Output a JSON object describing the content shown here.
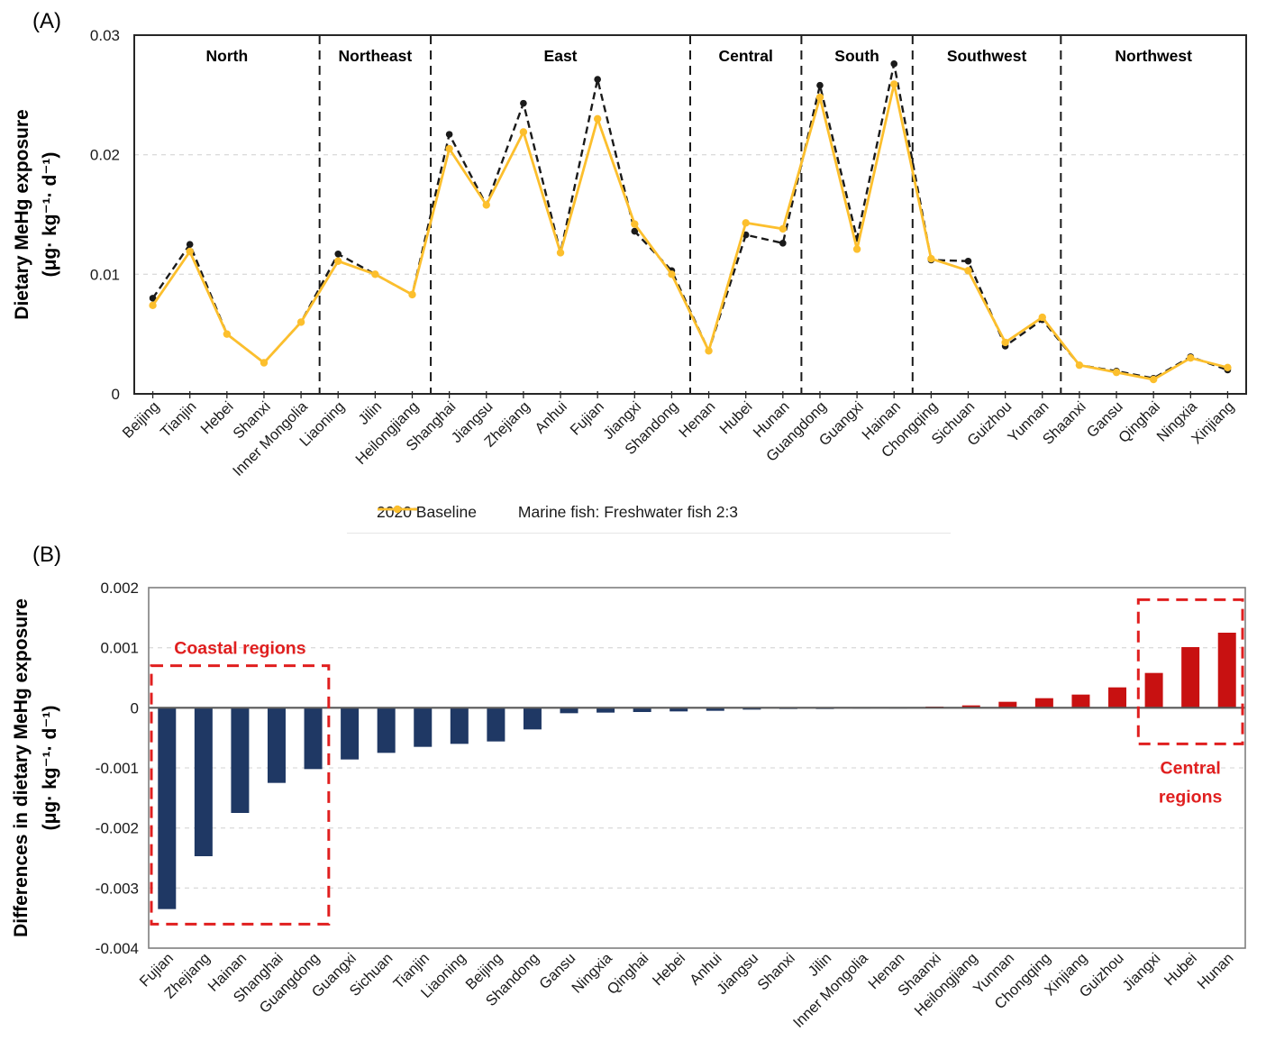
{
  "figure": {
    "panel_a_label": "(A)",
    "panel_b_label": "(B)"
  },
  "panel_a": {
    "y_axis_title_line1": "Dietary MeHg exposure",
    "y_axis_title_line2": "(μg· kg⁻¹· d⁻¹)",
    "legend": {
      "baseline_label": "2020 Baseline",
      "scenario_label": "Marine fish: Freshwater fish 2:3"
    }
  },
  "panel_b": {
    "y_axis_title_line1": "Differences in dietary MeHg exposure",
    "y_axis_title_line2": "(μg· kg⁻¹· d⁻¹)"
  },
  "chart_data": [
    {
      "type": "line",
      "panel": "A",
      "ylabel": "Dietary MeHg exposure (μg· kg⁻¹· d⁻¹)",
      "ylim": [
        0,
        0.03
      ],
      "yticks": [
        {
          "v": 0,
          "label": "0"
        },
        {
          "v": 0.01,
          "label": "0.01"
        },
        {
          "v": 0.02,
          "label": "0.02"
        },
        {
          "v": 0.03,
          "label": "0.03"
        }
      ],
      "grid_values": [
        0.01,
        0.02
      ],
      "grid_on": true,
      "legend_position": "bottom",
      "regions": [
        {
          "label": "North",
          "count": 5
        },
        {
          "label": "Northeast",
          "count": 3
        },
        {
          "label": "East",
          "count": 7
        },
        {
          "label": "Central",
          "count": 3
        },
        {
          "label": "South",
          "count": 3
        },
        {
          "label": "Southwest",
          "count": 4
        },
        {
          "label": "Northwest",
          "count": 5
        }
      ],
      "categories": [
        "Beijing",
        "Tianjin",
        "Hebei",
        "Shanxi",
        "Inner Mongolia",
        "Liaoning",
        "Jilin",
        "Heilongjiang",
        "Shanghai",
        "Jiangsu",
        "Zhejiang",
        "Anhui",
        "Fujian",
        "Jiangxi",
        "Shandong",
        "Henan",
        "Hubei",
        "Hunan",
        "Guangdong",
        "Guangxi",
        "Hainan",
        "Chongqing",
        "Sichuan",
        "Guizhou",
        "Yunnan",
        "Shaanxi",
        "Gansu",
        "Qinghai",
        "Ningxia",
        "Xinjiang"
      ],
      "series": [
        {
          "name": "2020 Baseline",
          "color": "#1a1a1a",
          "dashed": true,
          "values": [
            0.008,
            0.0125,
            0.005,
            0.0026,
            0.006,
            0.0117,
            0.01,
            0.0083,
            0.0217,
            0.0158,
            0.0243,
            0.0118,
            0.0263,
            0.0136,
            0.0103,
            0.0036,
            0.0133,
            0.0126,
            0.0258,
            0.013,
            0.0276,
            0.0112,
            0.0111,
            0.004,
            0.0062,
            0.0024,
            0.0019,
            0.0013,
            0.0031,
            0.002
          ]
        },
        {
          "name": "Marine fish: Freshwater fish 2:3",
          "color": "#FCBF2D",
          "dashed": false,
          "values": [
            0.0074,
            0.0119,
            0.005,
            0.0026,
            0.006,
            0.0111,
            0.01,
            0.0083,
            0.0205,
            0.0158,
            0.0219,
            0.0118,
            0.023,
            0.0142,
            0.01,
            0.0036,
            0.0143,
            0.0138,
            0.0248,
            0.0121,
            0.0259,
            0.0113,
            0.0103,
            0.0043,
            0.0064,
            0.0024,
            0.0018,
            0.0012,
            0.003,
            0.0022
          ]
        }
      ]
    },
    {
      "type": "bar",
      "panel": "B",
      "ylabel": "Differences in dietary MeHg exposure (μg· kg⁻¹· d⁻¹)",
      "ylim": [
        -0.004,
        0.002
      ],
      "yticks": [
        {
          "v": 0.002,
          "label": "0.002"
        },
        {
          "v": 0.001,
          "label": "0.001"
        },
        {
          "v": 0,
          "label": "0"
        },
        {
          "v": -0.001,
          "label": "-0.001"
        },
        {
          "v": -0.002,
          "label": "-0.002"
        },
        {
          "v": -0.003,
          "label": "-0.003"
        },
        {
          "v": -0.004,
          "label": "-0.004"
        }
      ],
      "grid_values": [
        0.001,
        -0.001,
        -0.002,
        -0.003
      ],
      "grid_on": true,
      "negative_color": "#1F3864",
      "positive_color": "#C81111",
      "categories": [
        "Fujian",
        "Zhejiang",
        "Hainan",
        "Shanghai",
        "Guangdong",
        "Guangxi",
        "Sichuan",
        "Tianjin",
        "Liaoning",
        "Beijing",
        "Shandong",
        "Gansu",
        "Ningxia",
        "Qinghai",
        "Hebei",
        "Anhui",
        "Jiangsu",
        "Shanxi",
        "Jilin",
        "Inner Mongolia",
        "Henan",
        "Shaanxi",
        "Heilongjiang",
        "Yunnan",
        "Chongqing",
        "Xinjiang",
        "Guizhou",
        "Jiangxi",
        "Hubei",
        "Hunan"
      ],
      "values": [
        -0.00335,
        -0.00247,
        -0.00175,
        -0.00125,
        -0.00102,
        -0.00086,
        -0.00075,
        -0.00065,
        -0.0006,
        -0.00056,
        -0.00036,
        -9e-05,
        -8e-05,
        -7e-05,
        -6e-05,
        -5e-05,
        -3e-05,
        -2e-05,
        -2e-05,
        -1e-05,
        -1e-05,
        2e-05,
        4e-05,
        0.0001,
        0.00016,
        0.00022,
        0.00034,
        0.00058,
        0.00101,
        0.00125
      ],
      "annotations": [
        {
          "lines": [
            "Coastal regions"
          ],
          "from": 0,
          "to": 4,
          "top": 0.0007,
          "bottom": -0.0036,
          "label_side": "above",
          "color": "#E01F1F"
        },
        {
          "lines": [
            "Central",
            "regions"
          ],
          "from": 27,
          "to": 29,
          "top": 0.0018,
          "bottom": -0.0006,
          "label_side": "below",
          "color": "#E01F1F"
        }
      ]
    }
  ]
}
